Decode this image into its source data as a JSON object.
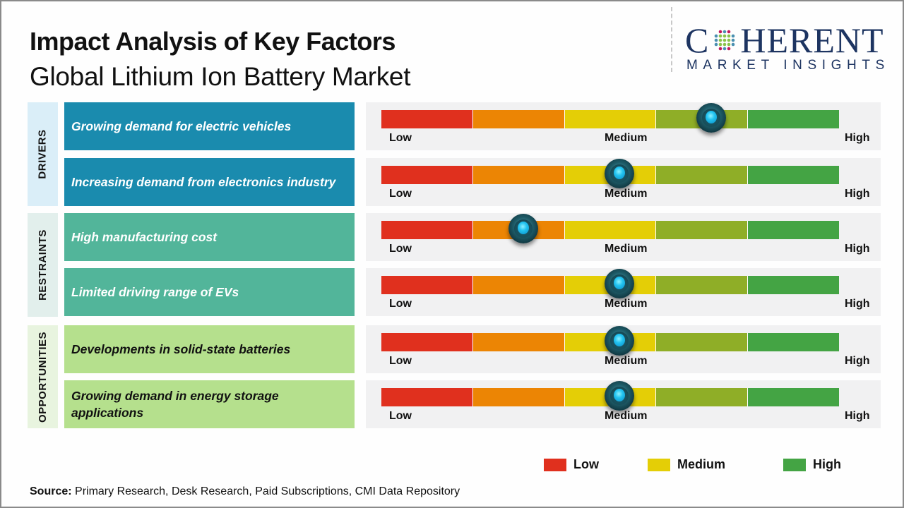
{
  "header": {
    "title": "Impact Analysis of Key Factors",
    "subtitle": "Global Lithium Ion Battery Market"
  },
  "logo": {
    "letter_c": "C",
    "rest": "HERENT",
    "tagline": "MARKET INSIGHTS",
    "brand_color": "#1d3461",
    "globe_icon": "globe-dots-icon"
  },
  "scale_labels": {
    "low": "Low",
    "medium": "Medium",
    "high": "High"
  },
  "segment_colors": [
    "#e0301e",
    "#ec8504",
    "#e4ce06",
    "#8fae27",
    "#44a444"
  ],
  "categories": [
    {
      "label": "DRIVERS",
      "tab_color": "#daeef8",
      "box_color": "#1a8bae",
      "text_color": "#ffffff"
    },
    {
      "label": "RESTRAINTS",
      "tab_color": "#e2efec",
      "box_color": "#52b59a",
      "text_color": "#ffffff"
    },
    {
      "label": "OPPORTUNITIES",
      "tab_color": "#e8f4df",
      "box_color": "#b5e08d",
      "text_color": "#111111"
    }
  ],
  "chart_data": {
    "type": "table",
    "title": "Impact Analysis of Key Factors",
    "subtitle": "Global Lithium Ion Battery Market",
    "scale": {
      "min_label": "Low",
      "mid_label": "Medium",
      "max_label": "High",
      "range": [
        0,
        1
      ]
    },
    "rows": [
      {
        "category": "DRIVERS",
        "factor": "Growing demand for electric vehicles",
        "impact": 0.72,
        "impact_level": "Medium-High"
      },
      {
        "category": "DRIVERS",
        "factor": "Increasing demand from electronics industry",
        "impact": 0.52,
        "impact_level": "Medium"
      },
      {
        "category": "RESTRAINTS",
        "factor": "High manufacturing cost",
        "impact": 0.31,
        "impact_level": "Low-Medium"
      },
      {
        "category": "RESTRAINTS",
        "factor": "Limited driving range of EVs",
        "impact": 0.52,
        "impact_level": "Medium"
      },
      {
        "category": "OPPORTUNITIES",
        "factor": "Developments in solid-state batteries",
        "impact": 0.52,
        "impact_level": "Medium"
      },
      {
        "category": "OPPORTUNITIES",
        "factor": "Growing demand in energy storage applications",
        "impact": 0.52,
        "impact_level": "Medium"
      }
    ],
    "legend": [
      {
        "label": "Low",
        "color": "#e0301e"
      },
      {
        "label": "Medium",
        "color": "#e4ce06"
      },
      {
        "label": "High",
        "color": "#44a444"
      }
    ],
    "legend_position": "bottom-right"
  },
  "footer": {
    "source_label": "Source:",
    "source_text": " Primary Research, Desk Research, Paid Subscriptions, CMI Data Repository"
  }
}
